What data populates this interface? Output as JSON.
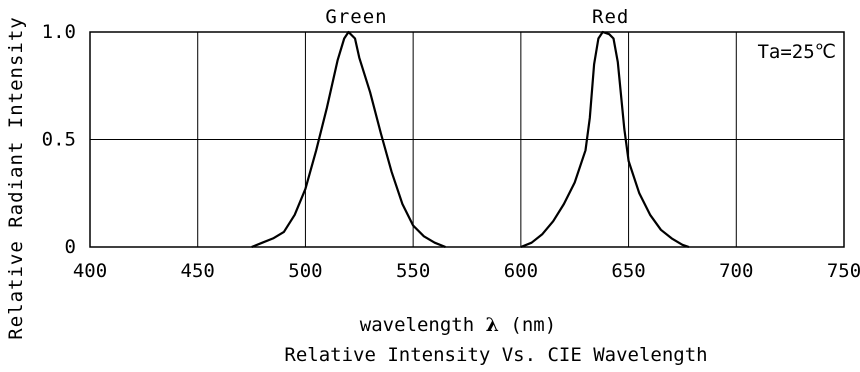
{
  "chart_data": {
    "type": "line",
    "title": "",
    "caption": "Relative Intensity Vs. CIE Wavelength",
    "xlabel": {
      "prefix": "wavelength",
      "symbol": "λ",
      "unit": "(nm)"
    },
    "ylabel": "Relative Radiant Intensity",
    "annotation": "Ta=25℃",
    "xlim": [
      400,
      750
    ],
    "ylim": [
      0,
      1.0
    ],
    "x_ticks": [
      "400",
      "450",
      "500",
      "550",
      "600",
      "650",
      "700",
      "750"
    ],
    "y_ticks": [
      "0",
      "0.5",
      "1.0"
    ],
    "grid": true,
    "series": [
      {
        "name": "Green",
        "color": "#000000",
        "points": [
          [
            475,
            0.0
          ],
          [
            480,
            0.02
          ],
          [
            485,
            0.04
          ],
          [
            490,
            0.07
          ],
          [
            495,
            0.15
          ],
          [
            500,
            0.27
          ],
          [
            505,
            0.45
          ],
          [
            510,
            0.65
          ],
          [
            515,
            0.87
          ],
          [
            518,
            0.97
          ],
          [
            520,
            1.0
          ],
          [
            523,
            0.97
          ],
          [
            525,
            0.88
          ],
          [
            530,
            0.72
          ],
          [
            535,
            0.53
          ],
          [
            540,
            0.35
          ],
          [
            545,
            0.2
          ],
          [
            550,
            0.1
          ],
          [
            555,
            0.05
          ],
          [
            560,
            0.02
          ],
          [
            565,
            0.0
          ]
        ]
      },
      {
        "name": "Red",
        "color": "#000000",
        "points": [
          [
            600,
            0.0
          ],
          [
            605,
            0.02
          ],
          [
            610,
            0.06
          ],
          [
            615,
            0.12
          ],
          [
            620,
            0.2
          ],
          [
            625,
            0.3
          ],
          [
            630,
            0.45
          ],
          [
            632,
            0.6
          ],
          [
            634,
            0.85
          ],
          [
            636,
            0.97
          ],
          [
            638,
            1.0
          ],
          [
            641,
            0.99
          ],
          [
            643,
            0.97
          ],
          [
            645,
            0.86
          ],
          [
            648,
            0.55
          ],
          [
            650,
            0.4
          ],
          [
            655,
            0.25
          ],
          [
            660,
            0.15
          ],
          [
            665,
            0.08
          ],
          [
            670,
            0.04
          ],
          [
            675,
            0.01
          ],
          [
            678,
            0.0
          ]
        ]
      }
    ]
  }
}
